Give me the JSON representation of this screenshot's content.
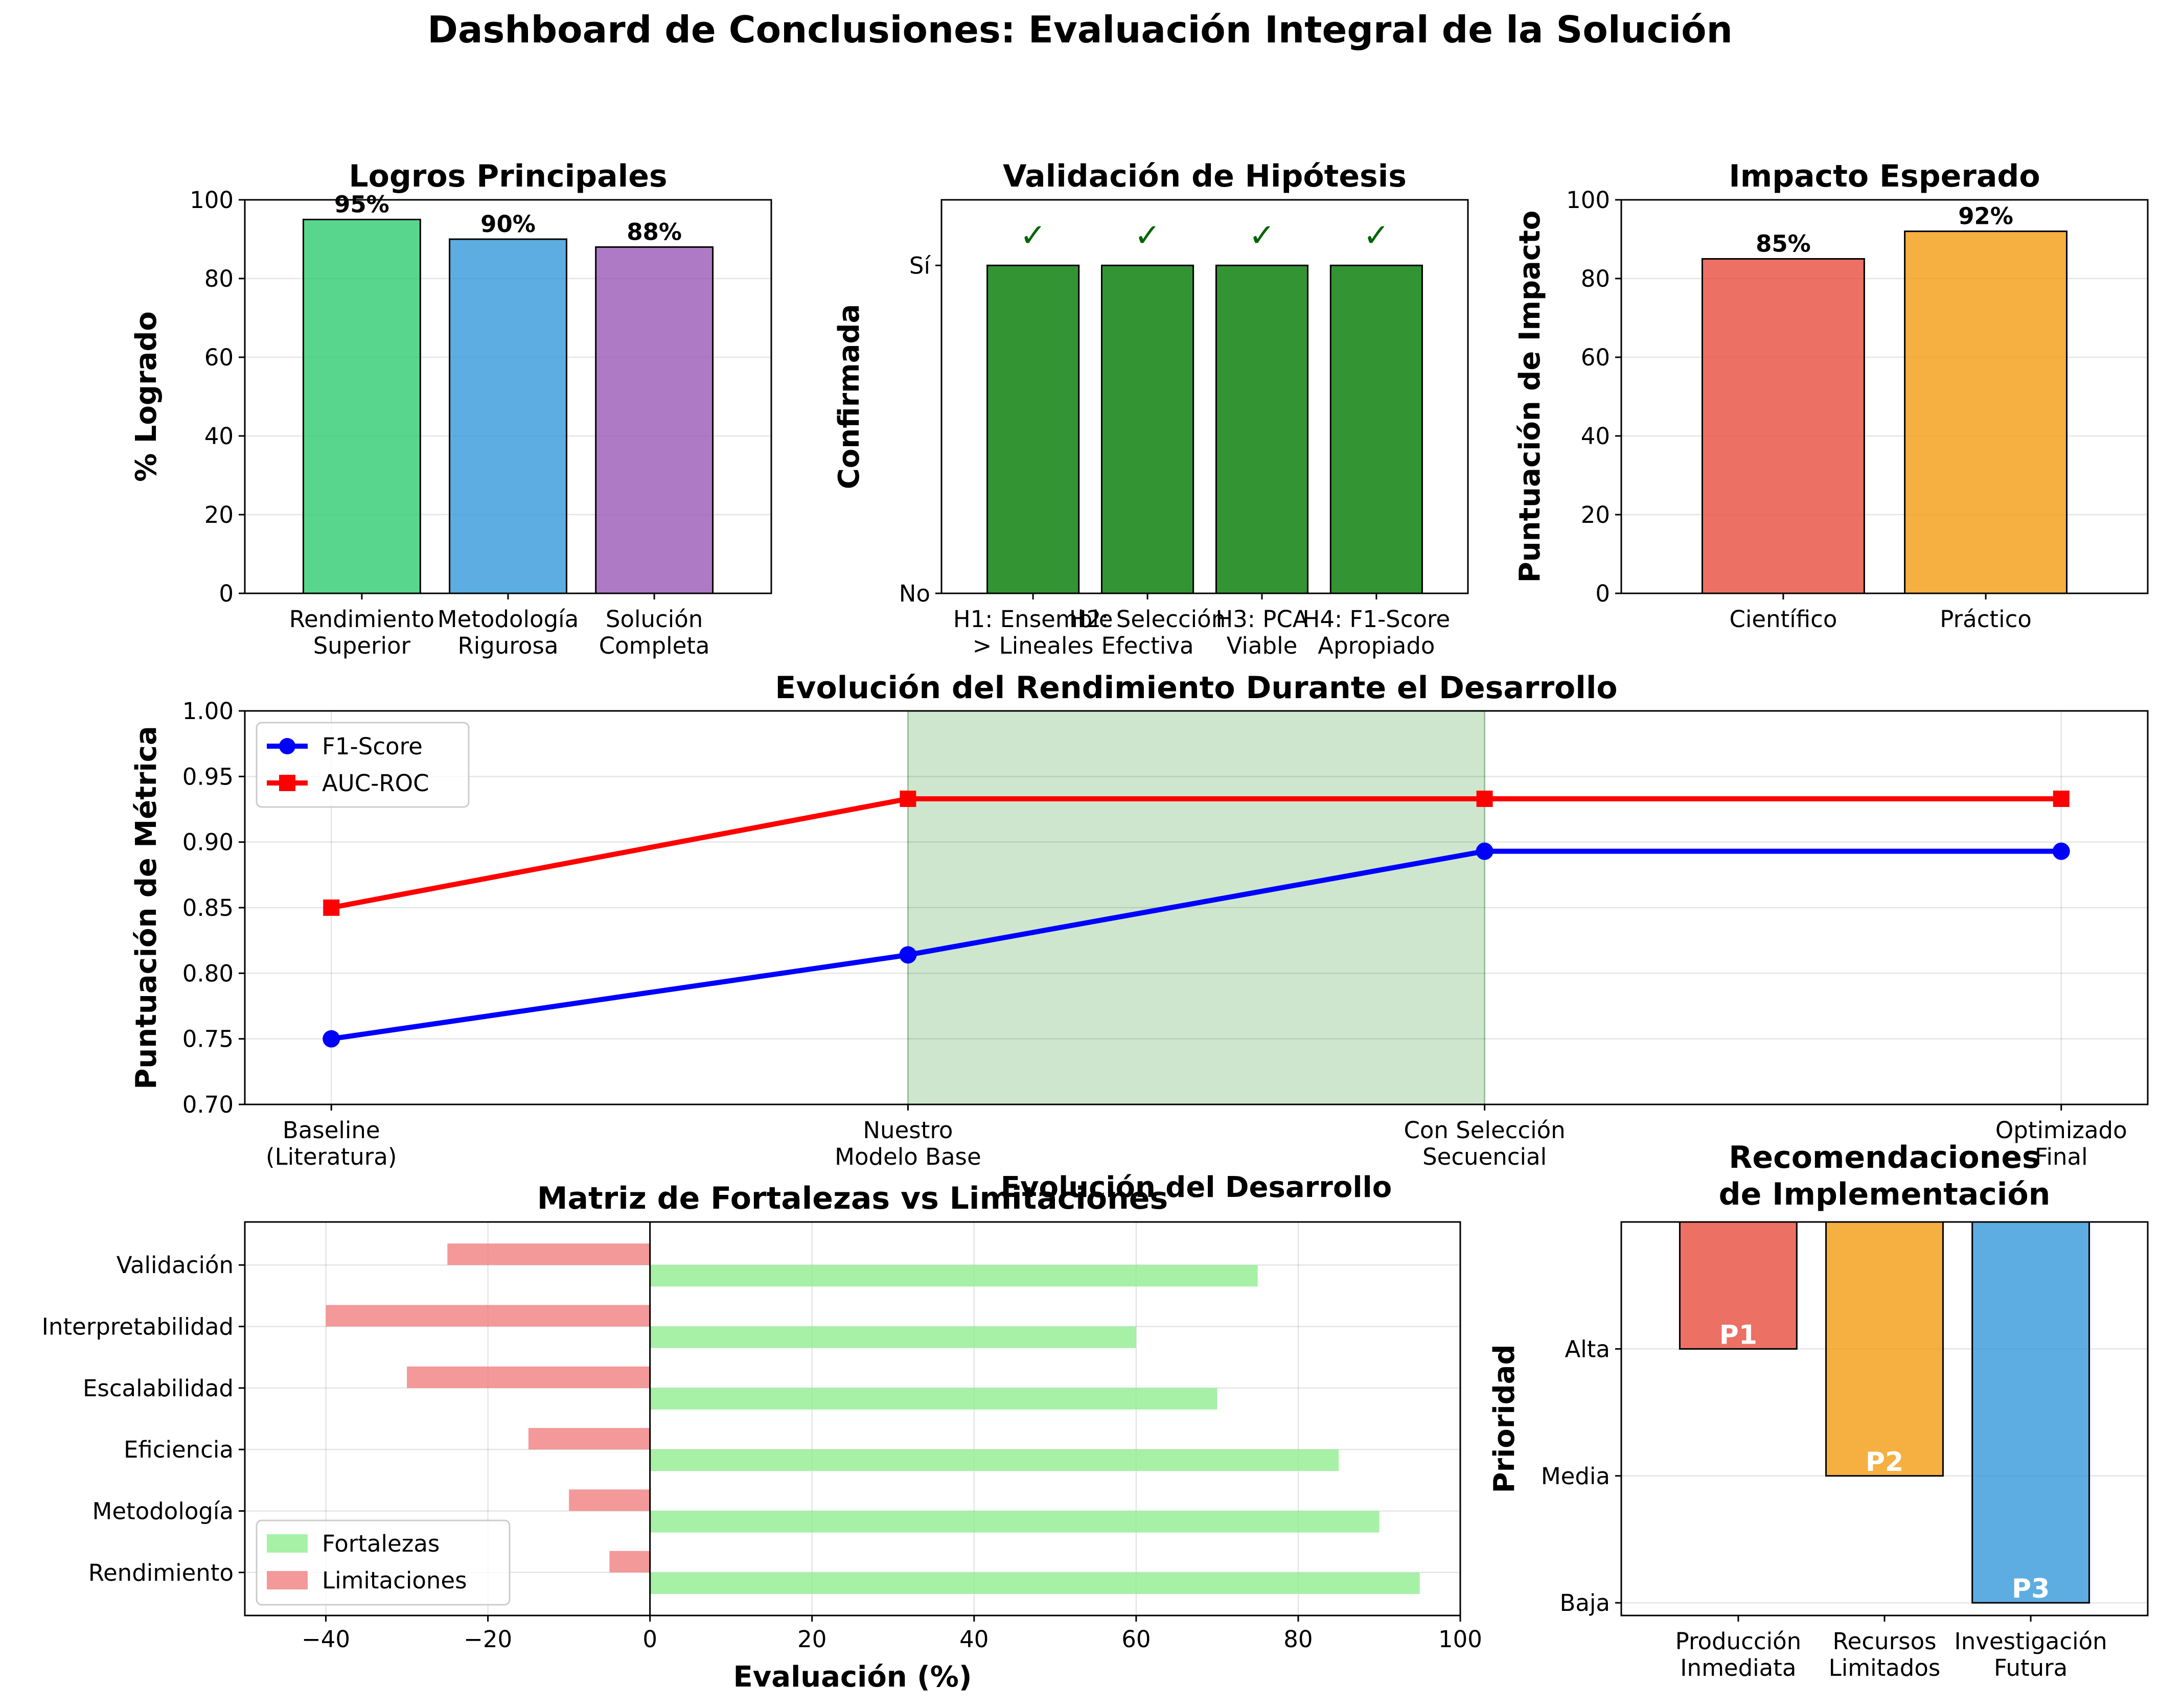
{
  "suptitle": "Dashboard de Conclusiones: Evaluación Integral de la Solución",
  "chart_data": [
    {
      "id": "logros",
      "type": "bar",
      "title": "Logros Principales",
      "ylabel": "% Logrado",
      "xlabel": "",
      "categories": [
        "Rendimiento\nSuperior",
        "Metodología\nRigurosa",
        "Solución\nCompleta"
      ],
      "values": [
        95,
        90,
        88
      ],
      "value_labels": [
        "95%",
        "90%",
        "88%"
      ],
      "colors": [
        "#2ecc71",
        "#3498db",
        "#9b59b6"
      ],
      "ylim": [
        0,
        100
      ],
      "yticks": [
        0,
        20,
        40,
        60,
        80,
        100
      ],
      "grid": "y"
    },
    {
      "id": "hipotesis",
      "type": "bar",
      "title": "Validación de Hipótesis",
      "ylabel": "Confirmada",
      "xlabel": "",
      "categories": [
        "H1: Ensemble\n> Lineales",
        "H2: Selección\nEfectiva",
        "H3: PCA\nViable",
        "H4: F1-Score\nApropiado"
      ],
      "values": [
        1,
        1,
        1,
        1
      ],
      "value_labels": [
        "✓",
        "✓",
        "✓",
        "✓"
      ],
      "colors": [
        "#228B22"
      ],
      "ylim": [
        0,
        1.2
      ],
      "yticks": [
        0,
        1
      ],
      "ytick_labels": [
        "No",
        "Sí"
      ],
      "grid": "none"
    },
    {
      "id": "impacto",
      "type": "bar",
      "title": "Impacto Esperado",
      "ylabel": "Puntuación de Impacto",
      "xlabel": "",
      "categories": [
        "Científico",
        "Práctico"
      ],
      "values": [
        85,
        92
      ],
      "value_labels": [
        "85%",
        "92%"
      ],
      "colors": [
        "#e74c3c",
        "#f39c12"
      ],
      "ylim": [
        0,
        100
      ],
      "yticks": [
        0,
        20,
        40,
        60,
        80,
        100
      ],
      "grid": "y"
    },
    {
      "id": "evolucion",
      "type": "line",
      "title": "Evolución del Rendimiento Durante el Desarrollo",
      "ylabel": "Puntuación de Métrica",
      "xlabel": "Evolución del Desarrollo",
      "categories": [
        "Baseline\n(Literatura)",
        "Nuestro\nModelo Base",
        "Con Selección\nSecuencial",
        "Optimizado\nFinal"
      ],
      "series": [
        {
          "name": "F1-Score",
          "values": [
            0.75,
            0.814,
            0.893,
            0.893
          ],
          "color": "#0000ff",
          "marker": "circle"
        },
        {
          "name": "AUC-ROC",
          "values": [
            0.85,
            0.933,
            0.933,
            0.933
          ],
          "color": "#ff0000",
          "marker": "square"
        }
      ],
      "shaded_region": {
        "from": 1,
        "to": 2,
        "color": "#228B22"
      },
      "ylim": [
        0.7,
        1.0
      ],
      "yticks": [
        0.7,
        0.75,
        0.8,
        0.85,
        0.9,
        0.95,
        1.0
      ],
      "ytick_labels": [
        "0.70",
        "0.75",
        "0.80",
        "0.85",
        "0.90",
        "0.95",
        "1.00"
      ],
      "grid": "both",
      "legend": "top-left"
    },
    {
      "id": "matriz",
      "type": "bar",
      "orientation": "horizontal",
      "title": "Matriz de Fortalezas vs Limitaciones",
      "xlabel": "Evaluación (%)",
      "ylabel": "",
      "categories": [
        "Rendimiento",
        "Metodología",
        "Eficiencia",
        "Escalabilidad",
        "Interpretabilidad",
        "Validación"
      ],
      "series": [
        {
          "name": "Fortalezas",
          "values": [
            95,
            90,
            85,
            70,
            60,
            75
          ],
          "color": "#90ee90"
        },
        {
          "name": "Limitaciones",
          "values": [
            -5,
            -10,
            -15,
            -30,
            -40,
            -25
          ],
          "color": "#f08080"
        }
      ],
      "xlim": [
        -50,
        100
      ],
      "xticks": [
        -40,
        -20,
        0,
        20,
        40,
        60,
        80,
        100
      ],
      "xtick_labels": [
        "−40",
        "−20",
        "0",
        "20",
        "40",
        "60",
        "80",
        "100"
      ],
      "grid": "x",
      "legend": "bottom-left"
    },
    {
      "id": "recomendaciones",
      "type": "bar",
      "title": "Recomendaciones\nde Implementación",
      "ylabel": "Prioridad",
      "xlabel": "",
      "categories": [
        "Producción\nInmediata",
        "Recursos\nLimitados",
        "Investigación\nFutura"
      ],
      "values": [
        3,
        2,
        1
      ],
      "value_labels": [
        "P1",
        "P2",
        "P3"
      ],
      "colors": [
        "#e74c3c",
        "#f39c12",
        "#3498db"
      ],
      "yticks": [
        1,
        2,
        3
      ],
      "ytick_labels": [
        "Baja",
        "Media",
        "Alta"
      ],
      "grid": "y"
    }
  ]
}
